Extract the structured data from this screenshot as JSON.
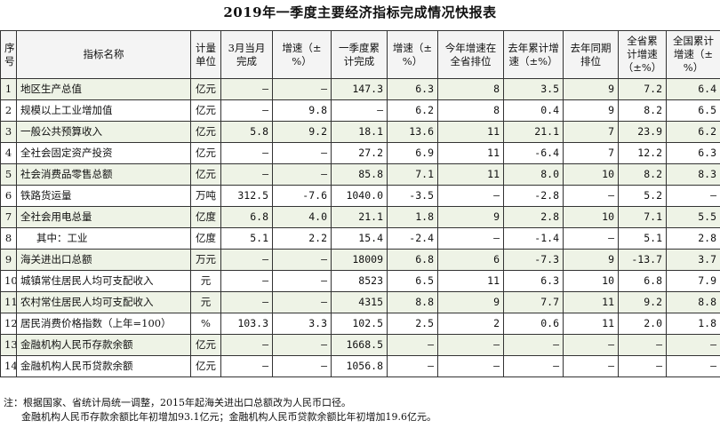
{
  "title": "2019年一季度主要经济指标完成情况快报表",
  "headers": {
    "no": "序号",
    "name": "指标名称",
    "unit": "计量单位",
    "march": "3月当月完成",
    "growth1": "增速（±%）",
    "q1": "一季度累计完成",
    "growth2": "增速（±%）",
    "rank": "今年增速在全省排位",
    "prev_growth": "去年累计增速（±%）",
    "prev_rank": "去年同期排位",
    "prov": "全省累计增速（±%）",
    "nation": "全国累计增速（±%）"
  },
  "rows": [
    {
      "no": "1",
      "name": "地区生产总值",
      "unit": "亿元",
      "march": "—",
      "growth1": "—",
      "q1": "147.3",
      "growth2": "6.3",
      "rank": "8",
      "prev_growth": "3.5",
      "prev_rank": "9",
      "prov": "7.2",
      "nation": "6.4"
    },
    {
      "no": "2",
      "name": "规模以上工业增加值",
      "unit": "亿元",
      "march": "—",
      "growth1": "9.8",
      "q1": "—",
      "growth2": "6.2",
      "rank": "8",
      "prev_growth": "0.4",
      "prev_rank": "9",
      "prov": "8.2",
      "nation": "6.5"
    },
    {
      "no": "3",
      "name": "一般公共预算收入",
      "unit": "亿元",
      "march": "5.8",
      "growth1": "9.2",
      "q1": "18.1",
      "growth2": "13.6",
      "rank": "11",
      "prev_growth": "21.1",
      "prev_rank": "7",
      "prov": "23.9",
      "nation": "6.2"
    },
    {
      "no": "4",
      "name": "全社会固定资产投资",
      "unit": "亿元",
      "march": "—",
      "growth1": "—",
      "q1": "27.2",
      "growth2": "6.9",
      "rank": "11",
      "prev_growth": "-6.4",
      "prev_rank": "7",
      "prov": "12.2",
      "nation": "6.3"
    },
    {
      "no": "5",
      "name": "社会消费品零售总额",
      "unit": "亿元",
      "march": "—",
      "growth1": "—",
      "q1": "85.8",
      "growth2": "7.1",
      "rank": "11",
      "prev_growth": "8.0",
      "prev_rank": "10",
      "prov": "8.2",
      "nation": "8.3"
    },
    {
      "no": "6",
      "name": "铁路货运量",
      "unit": "万吨",
      "march": "312.5",
      "growth1": "-7.6",
      "q1": "1040.0",
      "growth2": "-3.5",
      "rank": "—",
      "prev_growth": "-2.8",
      "prev_rank": "—",
      "prov": "5.2",
      "nation": "—"
    },
    {
      "no": "7",
      "name": "全社会用电总量",
      "unit": "亿度",
      "march": "6.8",
      "growth1": "4.0",
      "q1": "21.1",
      "growth2": "1.8",
      "rank": "9",
      "prev_growth": "2.8",
      "prev_rank": "10",
      "prov": "7.1",
      "nation": "5.5"
    },
    {
      "no": "8",
      "name": "其中：工业",
      "unit": "亿度",
      "march": "5.1",
      "growth1": "2.2",
      "q1": "15.4",
      "growth2": "-2.4",
      "rank": "—",
      "prev_growth": "-1.4",
      "prev_rank": "—",
      "prov": "5.1",
      "nation": "2.8"
    },
    {
      "no": "9",
      "name": "海关进出口总额",
      "unit": "万元",
      "march": "—",
      "growth1": "—",
      "q1": "18009",
      "growth2": "6.8",
      "rank": "6",
      "prev_growth": "-7.3",
      "prev_rank": "9",
      "prov": "-13.7",
      "nation": "3.7"
    },
    {
      "no": "10",
      "name": "城镇常住居民人均可支配收入",
      "unit": "元",
      "march": "—",
      "growth1": "—",
      "q1": "8523",
      "growth2": "6.5",
      "rank": "11",
      "prev_growth": "6.3",
      "prev_rank": "10",
      "prov": "6.8",
      "nation": "7.9"
    },
    {
      "no": "11",
      "name": "农村常住居民人均可支配收入",
      "unit": "元",
      "march": "—",
      "growth1": "—",
      "q1": "4315",
      "growth2": "8.8",
      "rank": "9",
      "prev_growth": "7.7",
      "prev_rank": "11",
      "prov": "9.2",
      "nation": "8.8"
    },
    {
      "no": "12",
      "name": "居民消费价格指数（上年=100）",
      "unit": "%",
      "march": "103.3",
      "growth1": "3.3",
      "q1": "102.5",
      "growth2": "2.5",
      "rank": "2",
      "prev_growth": "0.6",
      "prev_rank": "11",
      "prov": "2.0",
      "nation": "1.8"
    },
    {
      "no": "13",
      "name": "金融机构人民币存款余额",
      "unit": "亿元",
      "march": "—",
      "growth1": "—",
      "q1": "1668.5",
      "growth2": "—",
      "rank": "—",
      "prev_growth": "—",
      "prev_rank": "—",
      "prov": "—",
      "nation": "—"
    },
    {
      "no": "14",
      "name": "金融机构人民币贷款余额",
      "unit": "亿元",
      "march": "—",
      "growth1": "—",
      "q1": "1056.8",
      "growth2": "—",
      "rank": "—",
      "prev_growth": "—",
      "prev_rank": "—",
      "prov": "—",
      "nation": "—"
    }
  ],
  "notes": {
    "line1": "注：根据国家、省统计局统一调整，2015年起海关进出口总额改为人民币口径。",
    "line2": "金融机构人民币存款余额比年初增加93.1亿元；金融机构人民币贷款余额比年初增加19.6亿元。"
  }
}
